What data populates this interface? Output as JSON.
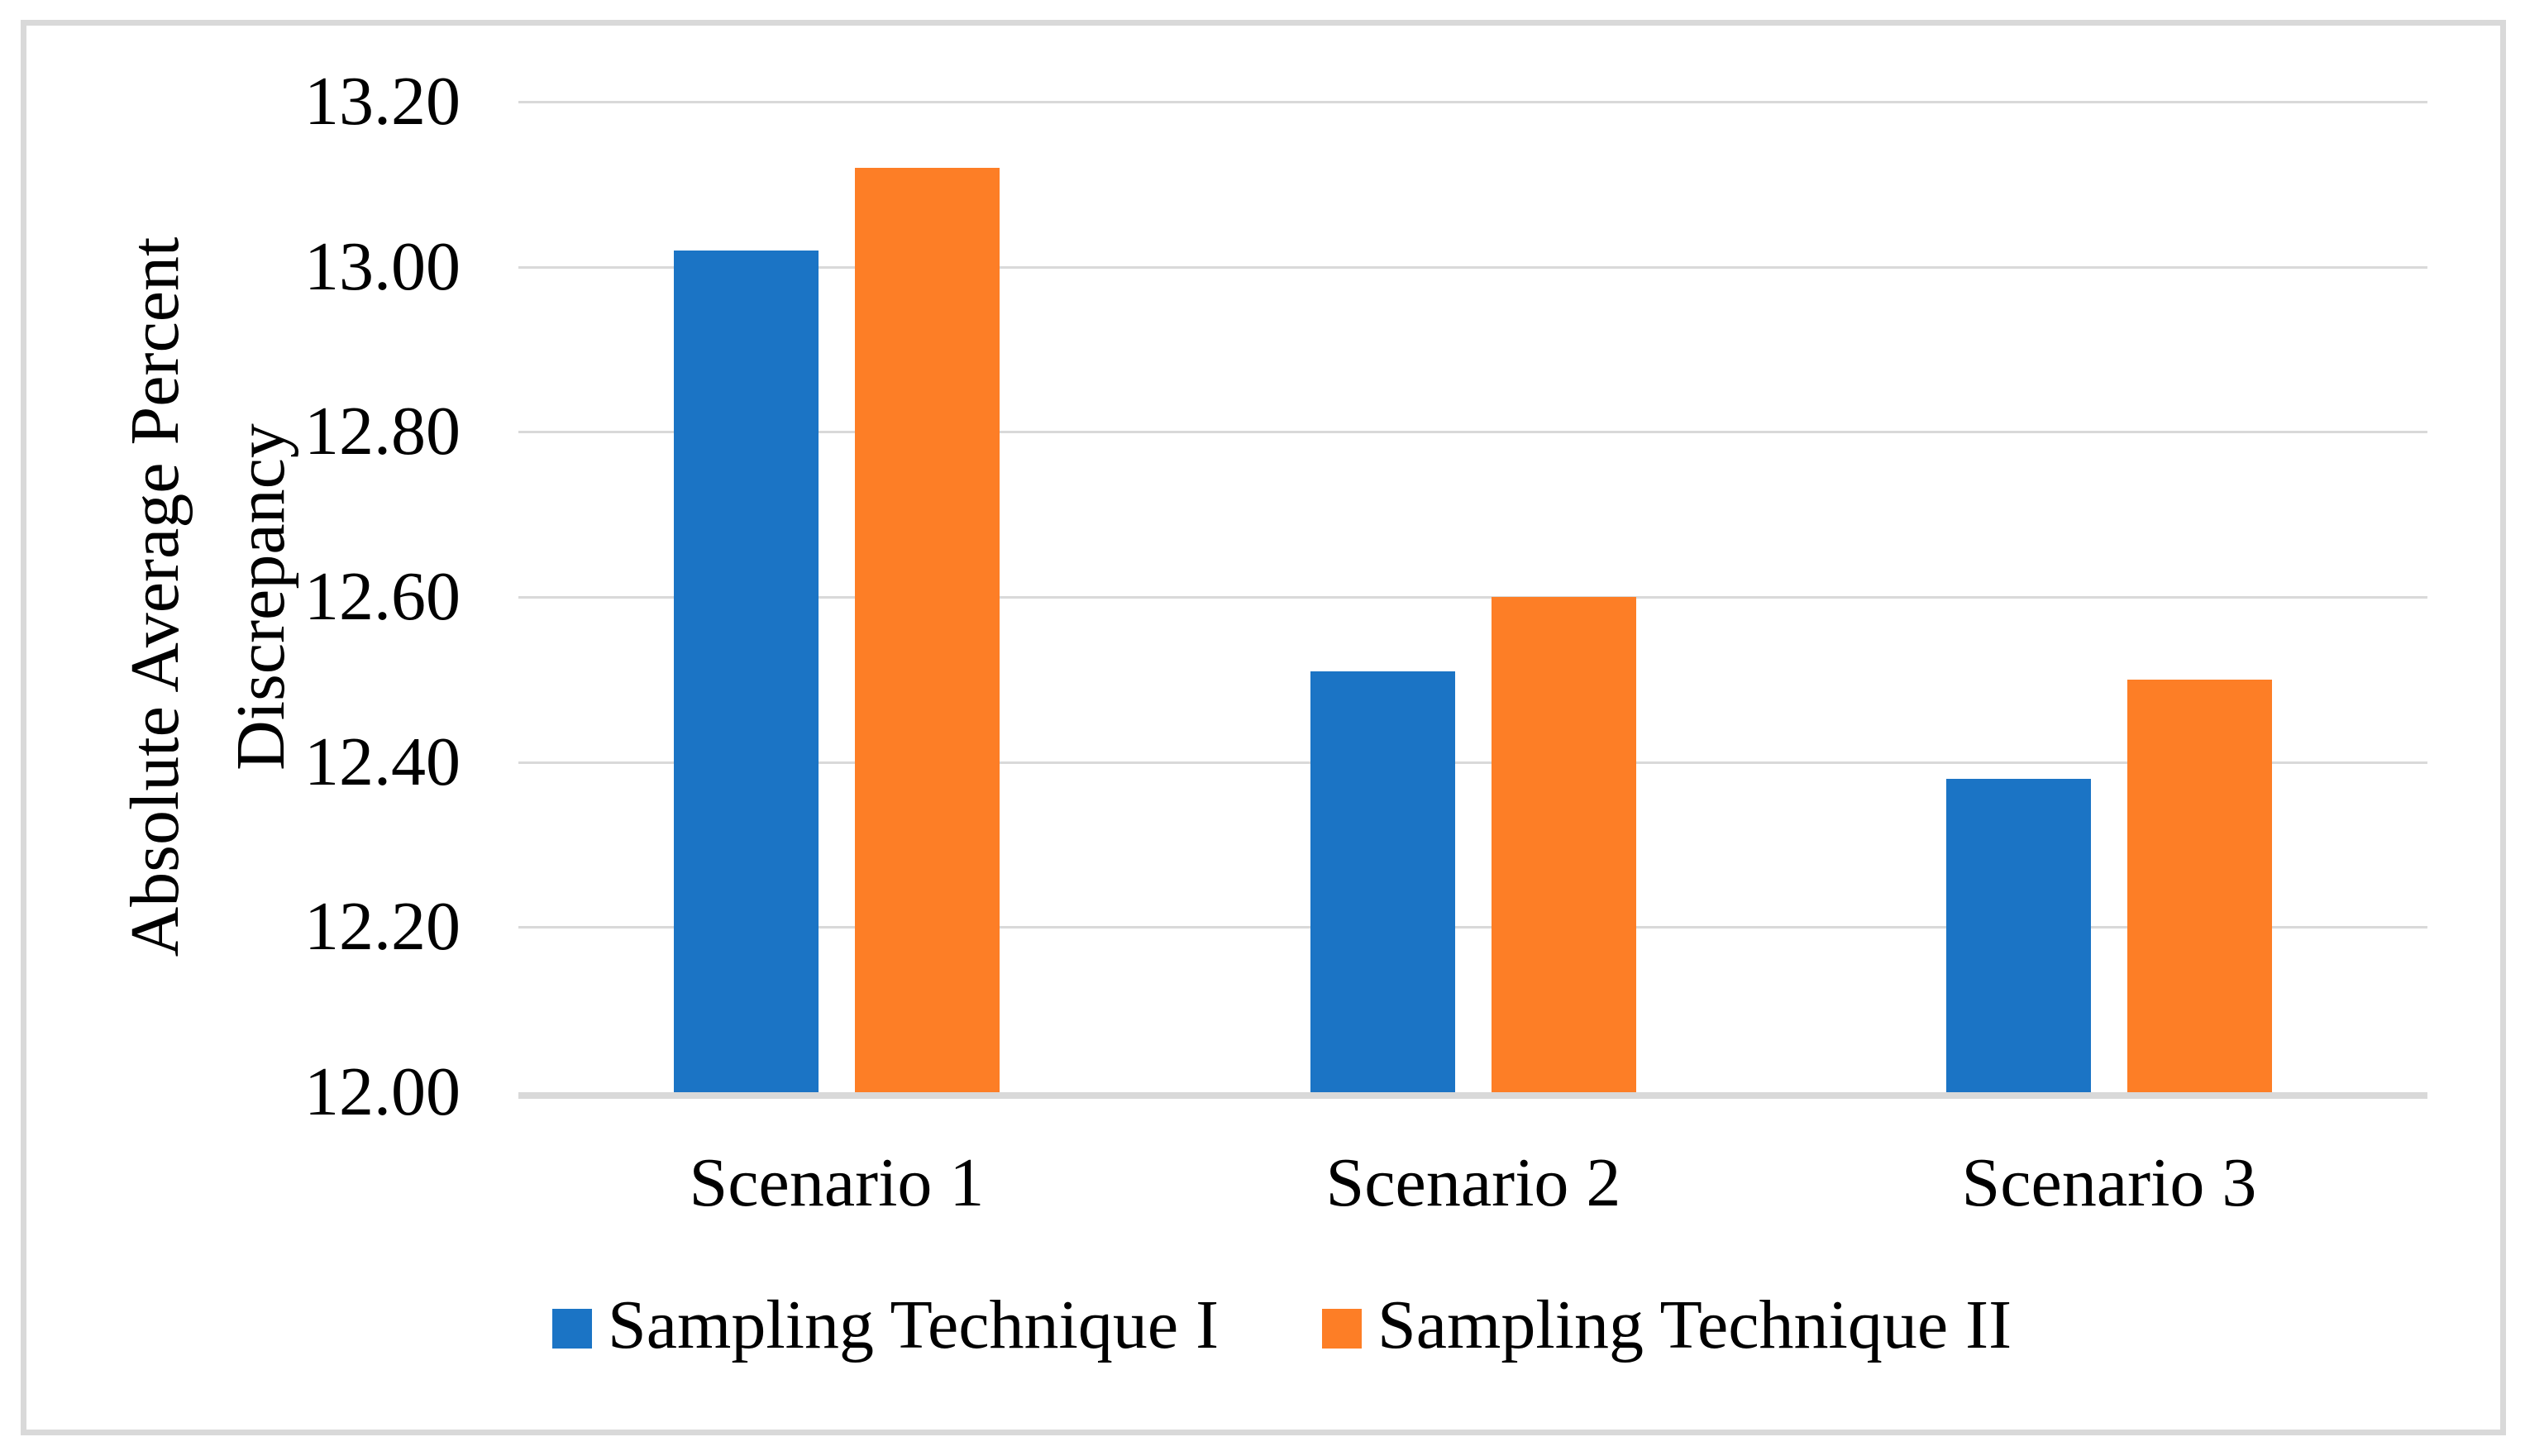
{
  "figure": {
    "background": "#FFFFFF",
    "border_color": "#D9D9D9"
  },
  "chart_data": {
    "type": "bar",
    "title": "",
    "ylabel": "Absolute Average Percent Discrepancy",
    "ylabel_lines": [
      "Absolute Average Percent",
      "Discrepancy"
    ],
    "xlabel": "",
    "categories": [
      "Scenario 1",
      "Scenario 2",
      "Scenario 3"
    ],
    "series": [
      {
        "name": "Sampling Technique I",
        "color": "#1B74C5",
        "values": [
          13.02,
          12.51,
          12.38
        ]
      },
      {
        "name": "Sampling Technique II",
        "color": "#FD7E26",
        "values": [
          13.12,
          12.6,
          12.5
        ]
      }
    ],
    "ylim": [
      12.0,
      13.2
    ],
    "ytick_step": 0.2,
    "ytick_labels": [
      "12.00",
      "12.20",
      "12.40",
      "12.60",
      "12.80",
      "13.00",
      "13.20"
    ],
    "grid": true,
    "gridline_color": "#D9D9D9",
    "axis_line_color": "#D9D9D9",
    "text_color": "#000000",
    "legend_position": "bottom"
  }
}
